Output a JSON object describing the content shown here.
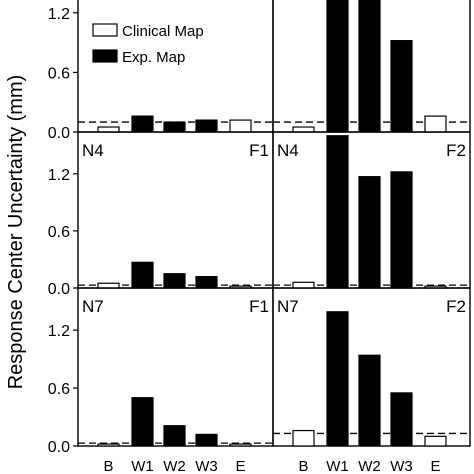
{
  "chart_data": {
    "type": "bar",
    "ylabel": "Response Center Uncertainty (mm)",
    "categories": [
      "B",
      "W1",
      "W2",
      "W3",
      "E"
    ],
    "ylim": [
      0,
      1.45
    ],
    "yticks": [
      "0.0",
      "0.6",
      "1.2"
    ],
    "legend": [
      {
        "label": "Clinical Map",
        "fill": "#ffffff"
      },
      {
        "label": "Exp. Map",
        "fill": "#000000"
      }
    ],
    "bar_fill": {
      "Clinical Map": "#ffffff",
      "Exp. Map": "#000000"
    },
    "panels": [
      {
        "row": 0,
        "col": 0,
        "left_label": "",
        "right_label": "",
        "values": [
          0.05,
          0.16,
          0.1,
          0.12,
          0.12
        ],
        "series": [
          "Clinical Map",
          "Exp. Map",
          "Exp. Map",
          "Exp. Map",
          "Clinical Map"
        ],
        "dashed_line": 0.1
      },
      {
        "row": 0,
        "col": 1,
        "left_label": "",
        "right_label": "",
        "values": [
          0.05,
          1.45,
          1.35,
          0.92,
          0.16
        ],
        "series": [
          "Clinical Map",
          "Exp. Map",
          "Exp. Map",
          "Exp. Map",
          "Clinical Map"
        ],
        "dashed_line": 0.1
      },
      {
        "row": 1,
        "col": 0,
        "left_label": "N4",
        "right_label": "F1",
        "values": [
          0.05,
          0.27,
          0.15,
          0.12,
          0.02
        ],
        "series": [
          "Clinical Map",
          "Exp. Map",
          "Exp. Map",
          "Exp. Map",
          "Clinical Map"
        ],
        "dashed_line": 0.03
      },
      {
        "row": 1,
        "col": 1,
        "left_label": "N4",
        "right_label": "F2",
        "values": [
          0.06,
          1.6,
          1.17,
          1.22,
          0.02
        ],
        "series": [
          "Clinical Map",
          "Exp. Map",
          "Exp. Map",
          "Exp. Map",
          "Clinical Map"
        ],
        "dashed_line": 0.03
      },
      {
        "row": 2,
        "col": 0,
        "left_label": "N7",
        "right_label": "F1",
        "values": [
          0.02,
          0.5,
          0.21,
          0.12,
          0.02
        ],
        "series": [
          "Clinical Map",
          "Exp. Map",
          "Exp. Map",
          "Exp. Map",
          "Clinical Map"
        ],
        "dashed_line": 0.03
      },
      {
        "row": 2,
        "col": 1,
        "left_label": "N7",
        "right_label": "F2",
        "values": [
          0.16,
          1.39,
          0.94,
          0.55,
          0.1
        ],
        "series": [
          "Clinical Map",
          "Exp. Map",
          "Exp. Map",
          "Exp. Map",
          "Clinical Map"
        ],
        "dashed_line": 0.13
      }
    ]
  }
}
